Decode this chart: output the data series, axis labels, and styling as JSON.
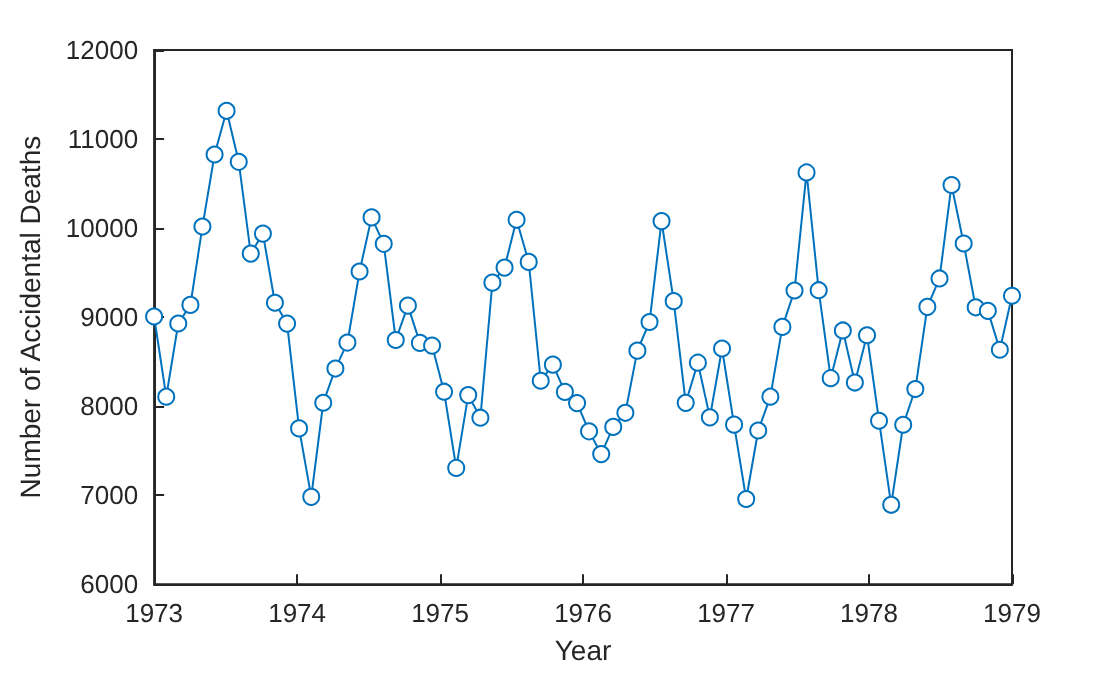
{
  "chart_data": {
    "type": "line",
    "xlabel": "Year",
    "ylabel": "Number of Accidental Deaths",
    "x": [
      1973,
      1973.085,
      1973.169,
      1973.254,
      1973.338,
      1973.423,
      1973.507,
      1973.592,
      1973.676,
      1973.761,
      1973.845,
      1973.93,
      1974.014,
      1974.099,
      1974.183,
      1974.268,
      1974.352,
      1974.437,
      1974.521,
      1974.606,
      1974.69,
      1974.775,
      1974.859,
      1974.944,
      1975.028,
      1975.113,
      1975.197,
      1975.282,
      1975.366,
      1975.451,
      1975.535,
      1975.62,
      1975.704,
      1975.789,
      1975.873,
      1975.958,
      1976.042,
      1976.127,
      1976.211,
      1976.296,
      1976.38,
      1976.465,
      1976.549,
      1976.634,
      1976.718,
      1976.803,
      1976.887,
      1976.972,
      1977.056,
      1977.141,
      1977.225,
      1977.31,
      1977.394,
      1977.479,
      1977.563,
      1977.648,
      1977.732,
      1977.817,
      1977.901,
      1977.986,
      1978.07,
      1978.155,
      1978.239,
      1978.324,
      1978.408,
      1978.493,
      1978.577,
      1978.662,
      1978.746,
      1978.831,
      1978.915,
      1979
    ],
    "series": [
      {
        "color": "#0072bd",
        "values": [
          9007,
          8106,
          8928,
          9137,
          10017,
          10826,
          11317,
          10744,
          9713,
          9938,
          9161,
          8927,
          7750,
          6981,
          8038,
          8422,
          8714,
          9512,
          10120,
          9823,
          8743,
          9129,
          8710,
          8680,
          8162,
          7306,
          8124,
          7870,
          9387,
          9556,
          10093,
          9620,
          8285,
          8466,
          8160,
          8034,
          7717,
          7461,
          7767,
          7925,
          8623,
          8945,
          10078,
          9179,
          8037,
          8488,
          7874,
          8647,
          7792,
          6957,
          7726,
          8106,
          8890,
          9299,
          10625,
          9302,
          8314,
          8850,
          8265,
          8796,
          7836,
          6892,
          7791,
          8192,
          9115,
          9434,
          10484,
          9827,
          9110,
          9070,
          8633,
          9240
        ]
      }
    ],
    "xlim": [
      1973,
      1979
    ],
    "xticks": [
      1973,
      1974,
      1975,
      1976,
      1977,
      1978,
      1979
    ],
    "ylim": [
      6000,
      12000
    ],
    "yticks": [
      6000,
      7000,
      8000,
      9000,
      10000,
      11000,
      12000
    ],
    "grid": false,
    "marker": "circle",
    "line_style": "solid"
  }
}
